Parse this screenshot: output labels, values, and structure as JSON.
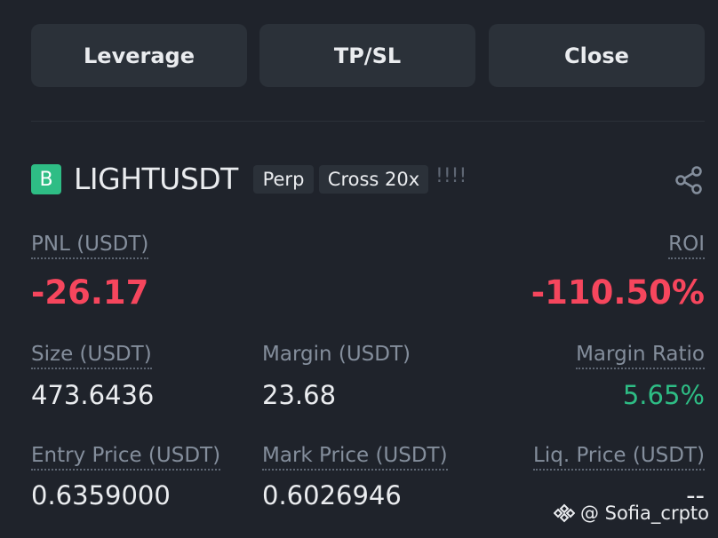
{
  "buttons": [
    "Leverage",
    "TP/SL",
    "Close"
  ],
  "position": {
    "badge": "B",
    "symbol": "LIGHTUSDT",
    "tags": [
      "Perp",
      "Cross 20x"
    ],
    "alert": "!!!!"
  },
  "fields": {
    "pnl": {
      "label": "PNL (USDT)",
      "value": "-26.17"
    },
    "roi": {
      "label": "ROI",
      "value": "-110.50%"
    },
    "size": {
      "label": "Size (USDT)",
      "value": "473.6436"
    },
    "margin": {
      "label": "Margin (USDT)",
      "value": "23.68"
    },
    "margin_ratio": {
      "label": "Margin Ratio",
      "value": "5.65%"
    },
    "entry_price": {
      "label": "Entry Price (USDT)",
      "value": "0.6359000"
    },
    "mark_price": {
      "label": "Mark Price (USDT)",
      "value": "0.6026946"
    },
    "liq_price": {
      "label": "Liq. Price (USDT)",
      "value": "--"
    }
  },
  "watermark": "@ Sofia_crpto"
}
